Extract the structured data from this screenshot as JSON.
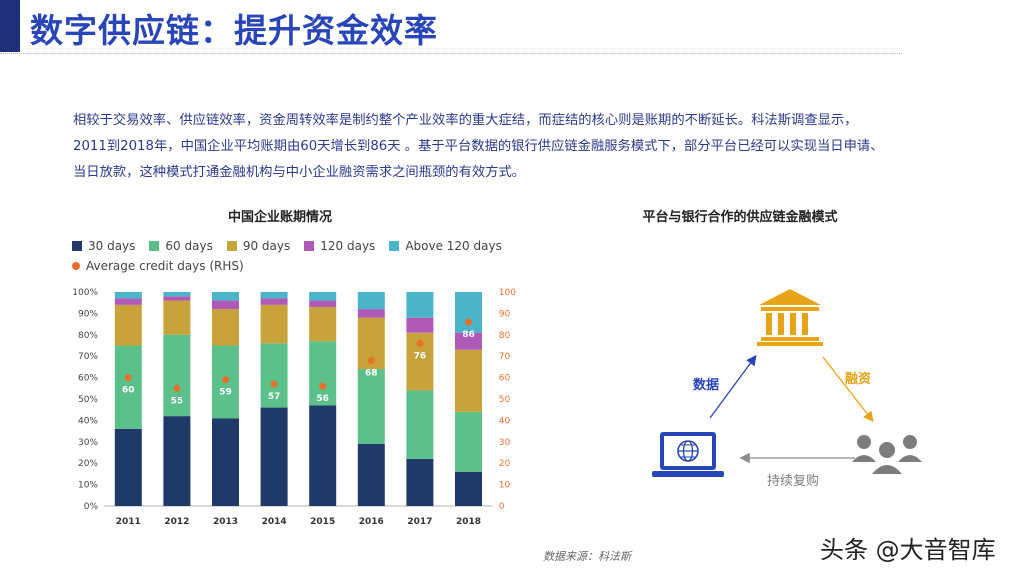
{
  "page": {
    "title": "数字供应链：提升资金效率",
    "body_lines": [
      "相较于交易效率、供应链效率，资金周转效率是制约整个产业效率的重大症结，而症结的核心则是账期的不断延长。科法斯调查显示，",
      "2011到2018年，中国企业平均账期由60天增长到86天 。基于平台数据的银行供应链金融服务模式下，部分平台已经可以实现当日申请、",
      "当日放款，这种模式打通金融机构与中小企业融资需求之间瓶颈的有效方式。"
    ],
    "source_note": "数据来源：科法斯",
    "watermark": "头条 @大音智库"
  },
  "chart_data": {
    "type": "bar",
    "stacked": true,
    "title": "中国企业账期情况",
    "categories": [
      "2011",
      "2012",
      "2013",
      "2014",
      "2015",
      "2016",
      "2017",
      "2018"
    ],
    "series": [
      {
        "name": "30 days",
        "color": "#1f3a68",
        "values": [
          36,
          42,
          41,
          46,
          47,
          29,
          22,
          16
        ]
      },
      {
        "name": "60 days",
        "color": "#5cc08a",
        "values": [
          39,
          38,
          34,
          30,
          30,
          35,
          32,
          28
        ]
      },
      {
        "name": "90 days",
        "color": "#c8a23a",
        "values": [
          19,
          16,
          17,
          18,
          16,
          24,
          27,
          29
        ]
      },
      {
        "name": "120 days",
        "color": "#b05ab8",
        "values": [
          3,
          2,
          4,
          3,
          3,
          4,
          7,
          8
        ]
      },
      {
        "name": "Above 120 days",
        "color": "#4bb4c8",
        "values": [
          3,
          2,
          4,
          3,
          4,
          8,
          12,
          19
        ]
      }
    ],
    "line_series": {
      "name": "Average credit days (RHS)",
      "color": "#e8702a",
      "values": [
        60,
        55,
        59,
        57,
        56,
        68,
        76,
        86
      ]
    },
    "y_left": {
      "ticks": [
        "0%",
        "10%",
        "20%",
        "30%",
        "40%",
        "50%",
        "60%",
        "70%",
        "80%",
        "90%",
        "100%"
      ],
      "range": [
        0,
        100
      ]
    },
    "y_right": {
      "ticks": [
        "0",
        "10",
        "20",
        "30",
        "40",
        "50",
        "60",
        "70",
        "80",
        "90",
        "100"
      ],
      "range": [
        0,
        100
      ]
    },
    "grid": false,
    "legend_position": "top-left"
  },
  "diagram": {
    "title": "平台与银行合作的供应链金融模式",
    "edge_data": "数据",
    "edge_finance": "融资",
    "edge_repeat": "持续复购",
    "colors": {
      "blue": "#2946b8",
      "gold": "#e8a418",
      "gray": "#808080"
    }
  }
}
